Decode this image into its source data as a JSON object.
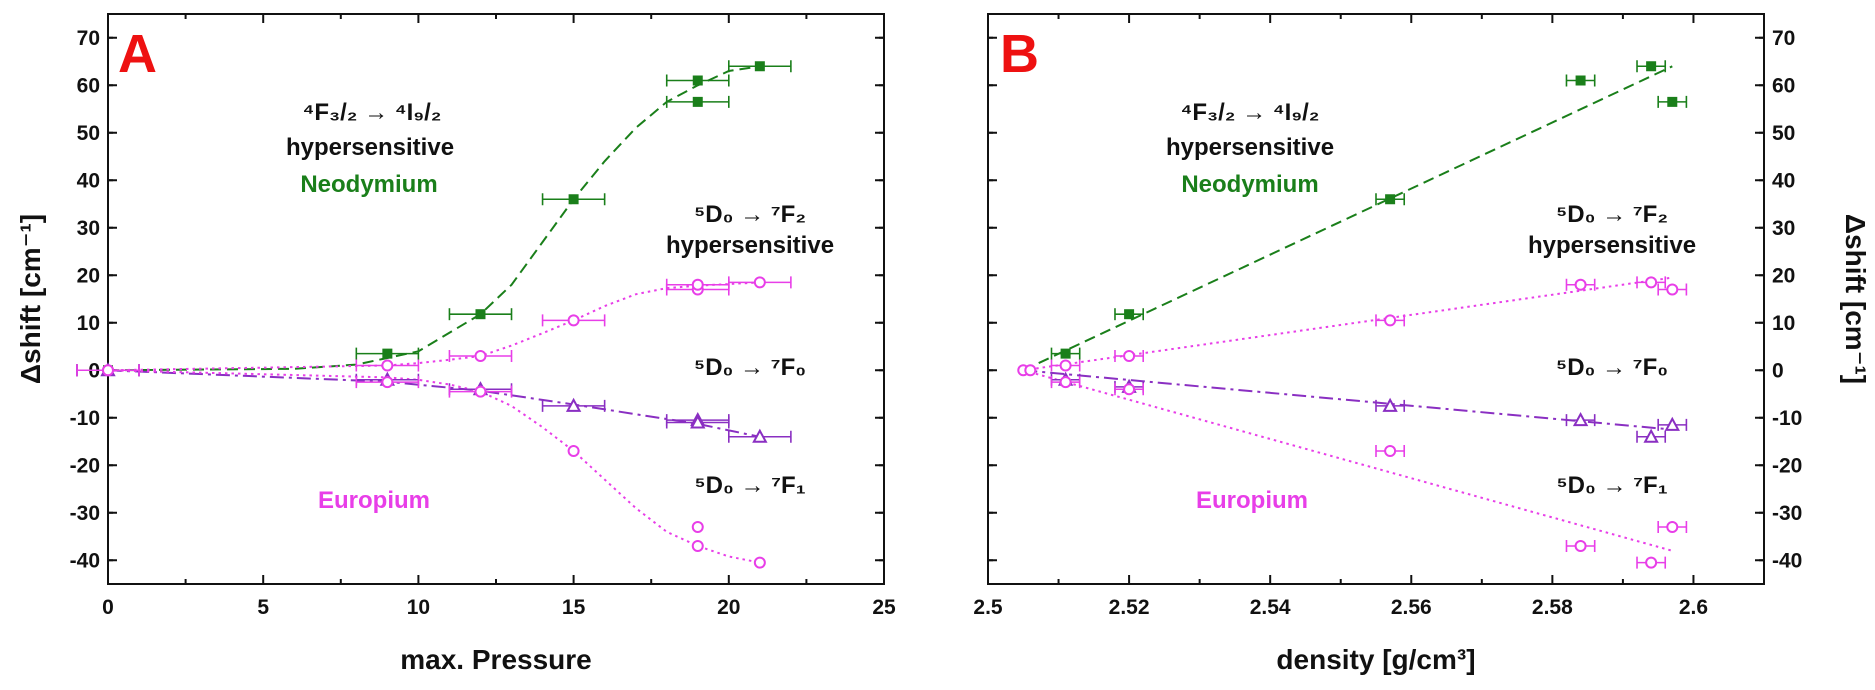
{
  "colors": {
    "neodymium": "#1a7f1a",
    "europium": "#e83ee8",
    "f0": "#8a2fc2",
    "panel_label": "#ee1111",
    "axis": "#111111"
  },
  "chart_data": [
    {
      "type": "scatter",
      "panel_label": "A",
      "xlabel": "max. Pressure",
      "ylabel": "Δshift [cm⁻¹]",
      "xlim": [
        0,
        25
      ],
      "ylim": [
        -45,
        75
      ],
      "xticks": [
        "0",
        "5",
        "10",
        "15",
        "20",
        "25"
      ],
      "yticks": [
        "70",
        "60",
        "50",
        "40",
        "30",
        "20",
        "10",
        "0",
        "-10",
        "-20",
        "-30",
        "-40"
      ],
      "annotations": {
        "nd_transition": "⁴F₃/₂ → ⁴I₉/₂",
        "nd_note": "hypersensitive",
        "nd_name": "Neodymium",
        "eu_f2_transition": "⁵D₀ → ⁷F₂",
        "eu_f2_note": "hypersensitive",
        "eu_f0_transition": "⁵D₀ → ⁷F₀",
        "eu_f1_transition": "⁵D₀ → ⁷F₁",
        "eu_name": "Europium"
      },
      "series": [
        {
          "name": "Nd ⁴F₃/₂→⁴I₉/₂",
          "marker": "square-filled",
          "color": "#1a7f1a",
          "linestyle": "dashed",
          "points": [
            [
              0,
              0
            ],
            [
              9,
              3.5
            ],
            [
              12,
              11.8
            ],
            [
              15,
              36
            ],
            [
              19,
              56.5
            ],
            [
              19,
              61
            ],
            [
              21,
              64
            ]
          ],
          "xerr": [
            1,
            1,
            1,
            1,
            1,
            1,
            1
          ],
          "fit": [
            [
              0,
              0
            ],
            [
              6,
              0.3
            ],
            [
              8,
              1.2
            ],
            [
              10,
              4
            ],
            [
              12,
              11.8
            ],
            [
              13,
              18
            ],
            [
              14,
              27
            ],
            [
              15,
              36
            ],
            [
              16,
              44
            ],
            [
              17,
              51
            ],
            [
              18,
              56.5
            ],
            [
              19,
              60
            ],
            [
              20,
              63
            ],
            [
              21,
              64
            ]
          ]
        },
        {
          "name": "Eu ⁵D₀→⁷F₂",
          "marker": "circle-open",
          "color": "#e83ee8",
          "linestyle": "dotted",
          "points": [
            [
              0,
              0
            ],
            [
              9,
              1
            ],
            [
              12,
              3
            ],
            [
              15,
              10.5
            ],
            [
              19,
              17
            ],
            [
              19,
              18
            ],
            [
              21,
              18.5
            ]
          ],
          "xerr": [
            1,
            1,
            1,
            1,
            1,
            1,
            1
          ],
          "fit": [
            [
              0,
              0
            ],
            [
              9,
              1
            ],
            [
              10,
              1.5
            ],
            [
              11,
              2.2
            ],
            [
              12,
              3
            ],
            [
              13,
              5.2
            ],
            [
              14,
              7.8
            ],
            [
              15,
              10.5
            ],
            [
              16,
              13.5
            ],
            [
              17,
              16
            ],
            [
              18,
              17.3
            ],
            [
              19,
              17.8
            ],
            [
              21,
              18.5
            ]
          ]
        },
        {
          "name": "Eu ⁵D₀→⁷F₀",
          "marker": "triangle-open",
          "color": "#8a2fc2",
          "linestyle": "dashdot",
          "points": [
            [
              0,
              0
            ],
            [
              9,
              -2
            ],
            [
              12,
              -4
            ],
            [
              15,
              -7.5
            ],
            [
              19,
              -10.5
            ],
            [
              19,
              -11
            ],
            [
              21,
              -14
            ]
          ],
          "xerr": [
            1,
            1,
            1,
            1,
            1,
            1,
            1
          ],
          "fit": [
            [
              0,
              0
            ],
            [
              9,
              -2.4
            ],
            [
              12,
              -4.3
            ],
            [
              15,
              -7.2
            ],
            [
              19,
              -11.3
            ],
            [
              21,
              -14
            ]
          ]
        },
        {
          "name": "Eu ⁵D₀→⁷F₁",
          "marker": "circle-open",
          "color": "#e83ee8",
          "linestyle": "dotted",
          "points": [
            [
              0,
              0
            ],
            [
              9,
              -2.5
            ],
            [
              12,
              -4.5
            ],
            [
              15,
              -17
            ],
            [
              19,
              -33
            ],
            [
              19,
              -37
            ],
            [
              21,
              -40.5
            ]
          ],
          "xerr": [
            1,
            1,
            1,
            0,
            0,
            0,
            0
          ],
          "fit": [
            [
              0,
              0
            ],
            [
              9,
              -1.5
            ],
            [
              10,
              -2
            ],
            [
              11,
              -3
            ],
            [
              12,
              -4.5
            ],
            [
              13,
              -7.5
            ],
            [
              14,
              -12
            ],
            [
              15,
              -17
            ],
            [
              16,
              -23
            ],
            [
              17,
              -29
            ],
            [
              18,
              -34
            ],
            [
              19,
              -37
            ],
            [
              20,
              -39.2
            ],
            [
              21,
              -40.5
            ]
          ]
        }
      ]
    },
    {
      "type": "scatter",
      "panel_label": "B",
      "xlabel": "density [g/cm³]",
      "ylabel": "Δshift [cm⁻¹]",
      "xlim": [
        2.5,
        2.61
      ],
      "ylim": [
        -45,
        75
      ],
      "xticks": [
        "2.5",
        "2.52",
        "2.54",
        "2.56",
        "2.58",
        "2.6"
      ],
      "yticks": [
        "70",
        "60",
        "50",
        "40",
        "30",
        "20",
        "10",
        "0",
        "-10",
        "-20",
        "-30",
        "-40"
      ],
      "annotations": {
        "nd_transition": "⁴F₃/₂ → ⁴I₉/₂",
        "nd_note": "hypersensitive",
        "nd_name": "Neodymium",
        "eu_f2_transition": "⁵D₀ → ⁷F₂",
        "eu_f2_note": "hypersensitive",
        "eu_f0_transition": "⁵D₀ → ⁷F₀",
        "eu_f1_transition": "⁵D₀ → ⁷F₁",
        "eu_name": "Europium"
      },
      "series": [
        {
          "name": "Nd ⁴F₃/₂→⁴I₉/₂",
          "marker": "square-filled",
          "color": "#1a7f1a",
          "linestyle": "dashed",
          "points": [
            [
              2.511,
              3.5
            ],
            [
              2.52,
              11.8
            ],
            [
              2.557,
              36
            ],
            [
              2.584,
              61
            ],
            [
              2.594,
              64
            ],
            [
              2.597,
              56.5
            ]
          ],
          "xerr": [
            0.002,
            0.002,
            0.002,
            0.002,
            0.002,
            0.002
          ],
          "fit": [
            [
              2.505,
              0
            ],
            [
              2.597,
              64
            ]
          ]
        },
        {
          "name": "Eu ⁵D₀→⁷F₂",
          "marker": "circle-open",
          "color": "#e83ee8",
          "linestyle": "dotted",
          "points": [
            [
              2.505,
              0
            ],
            [
              2.506,
              0
            ],
            [
              2.511,
              1
            ],
            [
              2.52,
              3
            ],
            [
              2.557,
              10.5
            ],
            [
              2.584,
              18
            ],
            [
              2.594,
              18.5
            ],
            [
              2.597,
              17
            ]
          ],
          "xerr": [
            0,
            0,
            0.002,
            0.002,
            0.002,
            0.002,
            0.002,
            0.002
          ],
          "fit": [
            [
              2.505,
              0
            ],
            [
              2.597,
              19.5
            ]
          ]
        },
        {
          "name": "Eu ⁵D₀→⁷F₀",
          "marker": "triangle-open",
          "color": "#8a2fc2",
          "linestyle": "dashdot",
          "points": [
            [
              2.511,
              -2
            ],
            [
              2.52,
              -3.5
            ],
            [
              2.557,
              -7.5
            ],
            [
              2.584,
              -10.5
            ],
            [
              2.594,
              -14
            ],
            [
              2.597,
              -11.5
            ]
          ],
          "xerr": [
            0.002,
            0.002,
            0.002,
            0.002,
            0.002,
            0.002
          ],
          "fit": [
            [
              2.505,
              0
            ],
            [
              2.597,
              -12.5
            ]
          ]
        },
        {
          "name": "Eu ⁵D₀→⁷F₁",
          "marker": "circle-open",
          "color": "#e83ee8",
          "linestyle": "dotted",
          "points": [
            [
              2.511,
              -2.5
            ],
            [
              2.52,
              -4
            ],
            [
              2.557,
              -17
            ],
            [
              2.584,
              -37
            ],
            [
              2.594,
              -40.5
            ],
            [
              2.597,
              -33
            ]
          ],
          "xerr": [
            0.002,
            0.002,
            0.002,
            0.002,
            0.002,
            0.002
          ],
          "fit": [
            [
              2.505,
              0
            ],
            [
              2.597,
              -38
            ]
          ]
        }
      ]
    }
  ]
}
